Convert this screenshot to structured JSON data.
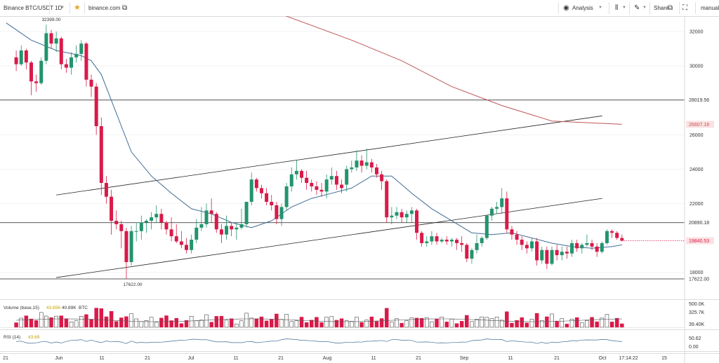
{
  "toolbar": {
    "symbol": "Binance BTC/USDT",
    "timeframe": "1D",
    "site": "binance.com",
    "analysis": "Analysis",
    "share": "Share",
    "mode": "manual"
  },
  "chart_data": {
    "type": "candlestick",
    "price_axis": {
      "ticks": [
        32000,
        30000,
        28000,
        26000,
        24000,
        22000,
        18000
      ],
      "range": [
        17000,
        33200
      ]
    },
    "x_ticks": [
      "21",
      "Jun",
      "11",
      "21",
      "Jul",
      "11",
      "21",
      "Aug",
      "11",
      "21",
      "Sep",
      "11",
      "21",
      "Oct",
      "17:14:22",
      "15"
    ],
    "price_labels": {
      "ma200": "26607.18",
      "level_high": "28019.56",
      "level_mid": "20890.18",
      "current": "19840.53",
      "level_low": "17622.00"
    },
    "annotations": {
      "high": "32399.00",
      "low": "17622.00"
    },
    "horizontal_levels": [
      28019.56,
      20890.18,
      17622.0
    ],
    "trend_channel": {
      "upper": [
        [
          1,
          22500
        ],
        [
          31,
          27100
        ]
      ],
      "lower": [
        [
          1,
          17700
        ],
        [
          31,
          22300
        ]
      ]
    },
    "candles": [
      [
        -7,
        30500,
        30900,
        29700,
        30100
      ],
      [
        -6,
        30100,
        31200,
        30000,
        30900
      ],
      [
        -5,
        30900,
        31000,
        29800,
        30200
      ],
      [
        -4,
        30200,
        30300,
        28300,
        29100
      ],
      [
        -3,
        29100,
        29500,
        28500,
        29000
      ],
      [
        -2,
        29000,
        30500,
        28900,
        30300
      ],
      [
        -1,
        30300,
        32400,
        30100,
        31900
      ],
      [
        0,
        31900,
        32100,
        31000,
        31300
      ],
      [
        1,
        31300,
        32000,
        30800,
        31600
      ],
      [
        2,
        31600,
        31700,
        29800,
        30100
      ],
      [
        3,
        30100,
        30400,
        29600,
        29900
      ],
      [
        4,
        29900,
        30800,
        29500,
        30500
      ],
      [
        5,
        30500,
        31200,
        30200,
        30700
      ],
      [
        6,
        30700,
        31500,
        30300,
        31300
      ],
      [
        7,
        31300,
        31400,
        28800,
        29200
      ],
      [
        8,
        29200,
        29500,
        28200,
        28800
      ],
      [
        9,
        28800,
        29000,
        26000,
        26500
      ],
      [
        10,
        26500,
        27000,
        22500,
        23200
      ],
      [
        11,
        23200,
        23600,
        22000,
        22400
      ],
      [
        12,
        22400,
        22800,
        20200,
        21000
      ],
      [
        13,
        21000,
        21600,
        20500,
        20800
      ],
      [
        14,
        20800,
        21000,
        19400,
        20400
      ],
      [
        15,
        20400,
        20600,
        17622,
        18600
      ],
      [
        16,
        18600,
        20700,
        18400,
        20400
      ],
      [
        17,
        20400,
        20900,
        19800,
        20400
      ],
      [
        18,
        20400,
        21300,
        19900,
        20900
      ],
      [
        19,
        20900,
        21100,
        20300,
        21000
      ],
      [
        20,
        21000,
        21500,
        20500,
        21200
      ],
      [
        21,
        21200,
        21900,
        20900,
        21400
      ],
      [
        22,
        21400,
        21700,
        20500,
        20900
      ],
      [
        23,
        20900,
        21000,
        20200,
        20500
      ],
      [
        24,
        20500,
        21200,
        19800,
        20100
      ],
      [
        25,
        20100,
        20800,
        19700,
        19800
      ],
      [
        26,
        19800,
        20400,
        19400,
        19600
      ],
      [
        27,
        19600,
        20000,
        19100,
        19300
      ],
      [
        28,
        19300,
        20200,
        19100,
        19900
      ],
      [
        29,
        19900,
        21100,
        19700,
        20600
      ],
      [
        30,
        20600,
        21800,
        20400,
        20800
      ],
      [
        31,
        20800,
        22000,
        20600,
        21600
      ],
      [
        32,
        21600,
        22300,
        20900,
        21400
      ],
      [
        33,
        21400,
        21500,
        20300,
        20500
      ],
      [
        34,
        20500,
        20800,
        19700,
        20200
      ],
      [
        35,
        20200,
        21300,
        19900,
        20700
      ],
      [
        36,
        20700,
        20900,
        20100,
        20500
      ],
      [
        37,
        20500,
        20900,
        19900,
        20600
      ],
      [
        38,
        20600,
        21700,
        20500,
        20800
      ],
      [
        39,
        20800,
        22100,
        20600,
        22100
      ],
      [
        40,
        22100,
        23800,
        21900,
        23400
      ],
      [
        41,
        23400,
        23500,
        22700,
        22900
      ],
      [
        42,
        22900,
        23100,
        22300,
        22600
      ],
      [
        43,
        22600,
        22900,
        21900,
        22100
      ],
      [
        44,
        22100,
        22500,
        21600,
        21900
      ],
      [
        45,
        21900,
        22100,
        20800,
        21100
      ],
      [
        46,
        21100,
        22000,
        20700,
        21800
      ],
      [
        47,
        21800,
        23200,
        21600,
        23000
      ],
      [
        48,
        23000,
        24100,
        22700,
        23700
      ],
      [
        49,
        23700,
        24500,
        23400,
        23900
      ],
      [
        50,
        23900,
        24000,
        23200,
        23500
      ],
      [
        51,
        23500,
        23900,
        22800,
        23200
      ],
      [
        52,
        23200,
        23400,
        22700,
        23000
      ],
      [
        53,
        23000,
        23300,
        22500,
        22800
      ],
      [
        54,
        22800,
        23200,
        22400,
        22700
      ],
      [
        55,
        22700,
        23700,
        22300,
        23400
      ],
      [
        56,
        23400,
        24100,
        23100,
        23600
      ],
      [
        57,
        23600,
        23900,
        22800,
        23100
      ],
      [
        58,
        23100,
        23400,
        22600,
        22900
      ],
      [
        59,
        23100,
        24200,
        22700,
        24000
      ],
      [
        60,
        24000,
        24500,
        23800,
        24100
      ],
      [
        61,
        24100,
        25100,
        23900,
        24500
      ],
      [
        62,
        24500,
        24800,
        23800,
        24200
      ],
      [
        63,
        24200,
        25200,
        24000,
        24400
      ],
      [
        64,
        24400,
        24600,
        23800,
        24100
      ],
      [
        65,
        24100,
        24300,
        23500,
        23700
      ],
      [
        66,
        23700,
        23900,
        22800,
        23300
      ],
      [
        67,
        23300,
        23400,
        20900,
        21200
      ],
      [
        68,
        21200,
        21800,
        20800,
        21300
      ],
      [
        69,
        21300,
        21800,
        21100,
        21500
      ],
      [
        70,
        21500,
        21700,
        20900,
        21200
      ],
      [
        71,
        21200,
        21600,
        20900,
        21400
      ],
      [
        72,
        21400,
        21800,
        20900,
        21600
      ],
      [
        73,
        21600,
        21700,
        19900,
        20300
      ],
      [
        74,
        20300,
        20400,
        19500,
        19700
      ],
      [
        75,
        19700,
        20100,
        19500,
        19800
      ],
      [
        76,
        19800,
        20400,
        19600,
        20100
      ],
      [
        77,
        20100,
        20300,
        19600,
        19800
      ],
      [
        78,
        19800,
        20000,
        19700,
        19900
      ],
      [
        79,
        19900,
        20100,
        19600,
        19800
      ],
      [
        80,
        19800,
        20000,
        19500,
        19900
      ],
      [
        81,
        19900,
        20000,
        19300,
        19700
      ],
      [
        82,
        19700,
        20100,
        19200,
        19600
      ],
      [
        83,
        19600,
        19700,
        18600,
        18800
      ],
      [
        84,
        18800,
        19400,
        18500,
        19300
      ],
      [
        85,
        19300,
        20200,
        19100,
        19700
      ],
      [
        86,
        19700,
        20100,
        19500,
        20000
      ],
      [
        87,
        20000,
        21300,
        19900,
        21300
      ],
      [
        88,
        21300,
        21800,
        21000,
        21700
      ],
      [
        89,
        21700,
        22100,
        21400,
        21800
      ],
      [
        90,
        21800,
        22900,
        21400,
        22300
      ],
      [
        91,
        22300,
        22700,
        20300,
        20500
      ],
      [
        92,
        20500,
        20700,
        19900,
        20200
      ],
      [
        93,
        20200,
        20400,
        19600,
        19900
      ],
      [
        94,
        19900,
        20100,
        19300,
        19600
      ],
      [
        95,
        19600,
        19800,
        19100,
        19400
      ],
      [
        96,
        19400,
        20000,
        19200,
        19800
      ],
      [
        97,
        19800,
        20000,
        18400,
        18700
      ],
      [
        98,
        18700,
        19500,
        18500,
        19300
      ],
      [
        99,
        19300,
        19500,
        18200,
        18500
      ],
      [
        100,
        18500,
        19500,
        18400,
        19300
      ],
      [
        101,
        19300,
        19600,
        18700,
        19000
      ],
      [
        102,
        19000,
        19500,
        18700,
        19200
      ],
      [
        103,
        19200,
        19500,
        18800,
        19100
      ],
      [
        104,
        19100,
        19900,
        18900,
        19700
      ],
      [
        105,
        19700,
        19900,
        19200,
        19400
      ],
      [
        106,
        19400,
        19700,
        19100,
        19600
      ],
      [
        107,
        19600,
        20200,
        19500,
        19700
      ],
      [
        108,
        19700,
        19900,
        19300,
        19500
      ],
      [
        109,
        19500,
        19700,
        18900,
        19200
      ],
      [
        110,
        19200,
        19800,
        19100,
        19700
      ],
      [
        111,
        19700,
        20500,
        19600,
        20400
      ],
      [
        112,
        20400,
        20500,
        20000,
        20300
      ],
      [
        113,
        20300,
        20400,
        19900,
        20000
      ],
      [
        114,
        20000,
        20200,
        19800,
        19840
      ]
    ],
    "ma_fast": [
      [
        -9,
        32500
      ],
      [
        -4,
        31500
      ],
      [
        1,
        30900
      ],
      [
        6,
        30600
      ],
      [
        8,
        30300
      ],
      [
        10,
        29500
      ],
      [
        12,
        28000
      ],
      [
        14,
        26500
      ],
      [
        16,
        25000
      ],
      [
        20,
        23600
      ],
      [
        24,
        22600
      ],
      [
        28,
        21700
      ],
      [
        32,
        21400
      ],
      [
        36,
        20900
      ],
      [
        40,
        20600
      ],
      [
        44,
        21000
      ],
      [
        48,
        21800
      ],
      [
        52,
        22300
      ],
      [
        56,
        22600
      ],
      [
        60,
        22900
      ],
      [
        64,
        23600
      ],
      [
        68,
        23600
      ],
      [
        72,
        22600
      ],
      [
        76,
        21700
      ],
      [
        80,
        21000
      ],
      [
        84,
        20300
      ],
      [
        88,
        20200
      ],
      [
        92,
        20300
      ],
      [
        96,
        20000
      ],
      [
        100,
        19700
      ],
      [
        104,
        19500
      ],
      [
        108,
        19400
      ],
      [
        112,
        19500
      ],
      [
        114,
        19600
      ]
    ],
    "ma_slow": [
      [
        46,
        33000
      ],
      [
        60,
        31500
      ],
      [
        70,
        30300
      ],
      [
        80,
        28800
      ],
      [
        90,
        27700
      ],
      [
        100,
        26800
      ],
      [
        114,
        26607
      ]
    ],
    "volume_axis": {
      "ticks": [
        "500.0K",
        "325.7K",
        "39.40K"
      ]
    },
    "volume_label": "Volume (base,15)",
    "volume_values": [
      "43.85K",
      "40.89K",
      "BTC"
    ],
    "rsi_label": "RSI (14)",
    "rsi_value": "43.69",
    "rsi_axis": {
      "ticks": [
        "50.62",
        "0.00"
      ]
    }
  }
}
